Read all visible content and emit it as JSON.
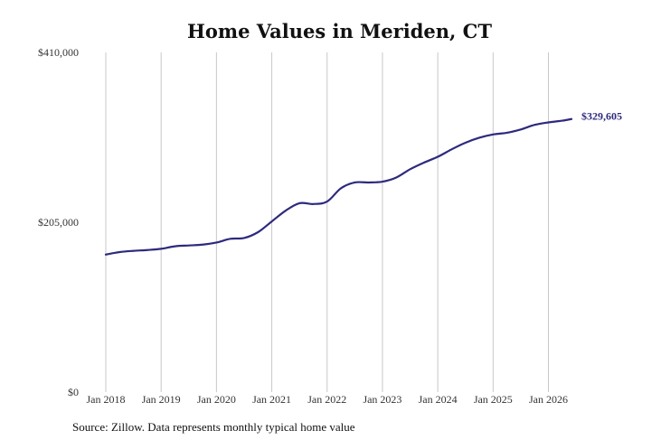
{
  "chart_data": {
    "type": "line",
    "title": "Home Values in Meriden, CT",
    "xlabel": "",
    "ylabel": "",
    "x_tick_labels": [
      "Jan 2018",
      "Jan 2019",
      "Jan 2020",
      "Jan 2021",
      "Jan 2022",
      "Jan 2023",
      "Jan 2024",
      "Jan 2025",
      "Jan 2026"
    ],
    "y_tick_labels": [
      "$410,000",
      "$205,000",
      "$0"
    ],
    "y_ticks": [
      410000,
      205000,
      0
    ],
    "ylim": [
      0,
      410000
    ],
    "xlim": [
      "2018-01",
      "2026-06"
    ],
    "grid": "vertical",
    "line_color": "#2d2a7e",
    "grid_color": "#c8c8c8",
    "end_label": "$329,605",
    "series": [
      {
        "points": [
          [
            "2018-01",
            166000
          ],
          [
            "2018-04",
            169000
          ],
          [
            "2018-07",
            170500
          ],
          [
            "2018-10",
            171500
          ],
          [
            "2019-01",
            173000
          ],
          [
            "2019-04",
            176000
          ],
          [
            "2019-07",
            177000
          ],
          [
            "2019-10",
            178000
          ],
          [
            "2020-01",
            180500
          ],
          [
            "2020-04",
            185000
          ],
          [
            "2020-07",
            186000
          ],
          [
            "2020-10",
            193000
          ],
          [
            "2021-01",
            206000
          ],
          [
            "2021-04",
            219000
          ],
          [
            "2021-07",
            228000
          ],
          [
            "2021-10",
            227000
          ],
          [
            "2022-01",
            230000
          ],
          [
            "2022-04",
            246000
          ],
          [
            "2022-07",
            253000
          ],
          [
            "2022-10",
            253000
          ],
          [
            "2023-01",
            254000
          ],
          [
            "2023-04",
            259000
          ],
          [
            "2023-07",
            269000
          ],
          [
            "2023-10",
            277000
          ],
          [
            "2024-01",
            284000
          ],
          [
            "2024-04",
            293000
          ],
          [
            "2024-07",
            301000
          ],
          [
            "2024-10",
            307000
          ],
          [
            "2025-01",
            311000
          ],
          [
            "2025-04",
            313000
          ],
          [
            "2025-07",
            317000
          ],
          [
            "2025-10",
            322500
          ],
          [
            "2026-01",
            325500
          ],
          [
            "2026-04",
            327600
          ],
          [
            "2026-06",
            329605
          ]
        ]
      }
    ]
  },
  "footer": {
    "source": "Source: Zillow. Data represents monthly typical home value"
  }
}
